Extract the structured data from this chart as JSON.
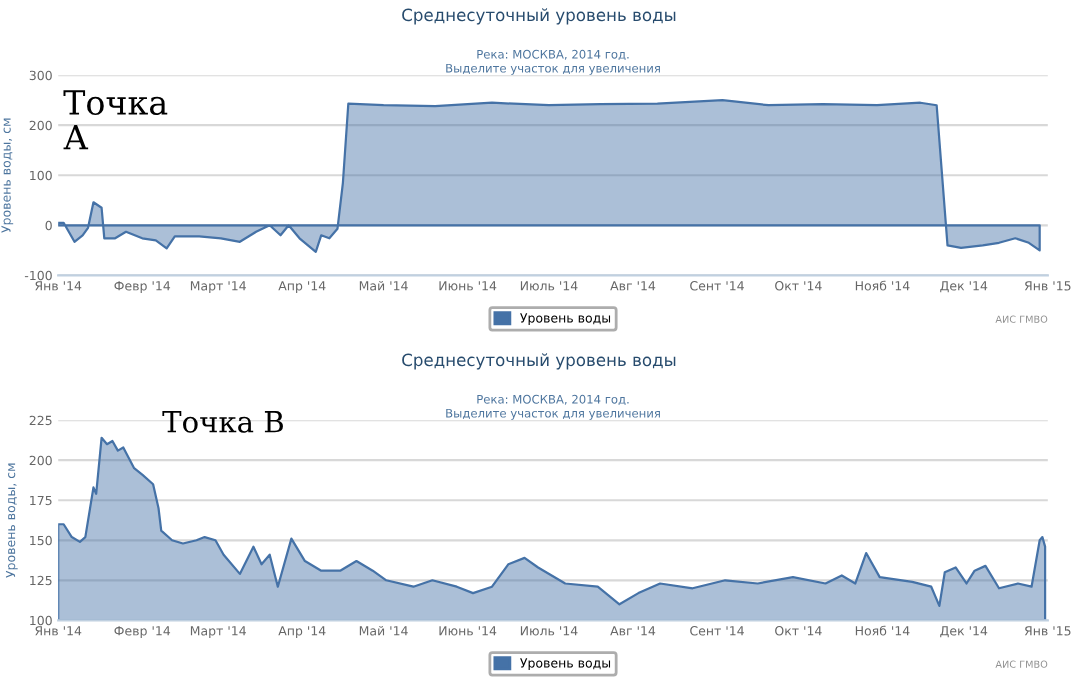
{
  "chart_data": [
    {
      "type": "area",
      "title": "Среднесуточный уровень воды",
      "subtitle": "Река: МОСКВА, 2014 год.\nВыделите участок для увеличения",
      "ylabel": "Уровень воды, см",
      "annotations": [
        "Точка\nА",
        "АИС ГМВО"
      ],
      "x": [
        "2014-01-01",
        "2014-01-03",
        "2014-01-07",
        "2014-01-10",
        "2014-01-12",
        "2014-01-14",
        "2014-01-17",
        "2014-01-18",
        "2014-01-22",
        "2014-01-26",
        "2014-02-01",
        "2014-02-06",
        "2014-02-10",
        "2014-02-13",
        "2014-02-22",
        "2014-03-02",
        "2014-03-09",
        "2014-03-15",
        "2014-03-20",
        "2014-03-24",
        "2014-03-27",
        "2014-03-31",
        "2014-04-06",
        "2014-04-08",
        "2014-04-11",
        "2014-04-14",
        "2014-04-16",
        "2014-04-18",
        "2014-05-01",
        "2014-05-20",
        "2014-06-10",
        "2014-07-01",
        "2014-07-20",
        "2014-08-10",
        "2014-09-03",
        "2014-09-20",
        "2014-10-10",
        "2014-10-30",
        "2014-11-15",
        "2014-11-21",
        "2014-11-25",
        "2014-11-30",
        "2014-12-08",
        "2014-12-14",
        "2014-12-20",
        "2014-12-25",
        "2014-12-29"
      ],
      "series": [
        {
          "name": "Уровень воды",
          "color": "#4572a7",
          "values": [
            5,
            5,
            -33,
            -20,
            -5,
            46,
            35,
            -26,
            -26,
            -13,
            -26,
            -30,
            -46,
            -22,
            -22,
            -26,
            -33,
            -13,
            0,
            -20,
            0,
            -26,
            -53,
            -20,
            -26,
            -7,
            85,
            243,
            240,
            238,
            245,
            240,
            242,
            243,
            250,
            240,
            242,
            240,
            245,
            240,
            -40,
            -45,
            -40,
            -35,
            -26,
            -35,
            -50
          ]
        }
      ],
      "xlim": [
        "2014-01-01",
        "2015-01-01"
      ],
      "xticks": [
        {
          "value": "2014-01-01",
          "label": "Янв '14"
        },
        {
          "value": "2014-02-01",
          "label": "Февр '14"
        },
        {
          "value": "2014-03-01",
          "label": "Март '14"
        },
        {
          "value": "2014-04-01",
          "label": "Апр '14"
        },
        {
          "value": "2014-05-01",
          "label": "Май '14"
        },
        {
          "value": "2014-06-01",
          "label": "Июнь '14"
        },
        {
          "value": "2014-07-01",
          "label": "Июль '14"
        },
        {
          "value": "2014-08-01",
          "label": "Авг '14"
        },
        {
          "value": "2014-09-01",
          "label": "Сент '14"
        },
        {
          "value": "2014-10-01",
          "label": "Окт '14"
        },
        {
          "value": "2014-11-01",
          "label": "Нояб '14"
        },
        {
          "value": "2014-12-01",
          "label": "Дек '14"
        },
        {
          "value": "2015-01-01",
          "label": "Янв '15"
        }
      ],
      "ylim": [
        -100,
        300
      ],
      "yticks": [
        -100,
        0,
        100,
        200,
        300
      ],
      "grid": "y",
      "legend": "bottom"
    },
    {
      "type": "area",
      "title": "Среднесуточный уровень воды",
      "subtitle": "Река: МОСКВА, 2014 год.\nВыделите участок для увеличения",
      "ylabel": "Уровень воды, см",
      "annotations": [
        "Точка В",
        "АИС ГМВО"
      ],
      "x": [
        "2014-01-01",
        "2014-01-03",
        "2014-01-06",
        "2014-01-09",
        "2014-01-11",
        "2014-01-14",
        "2014-01-15",
        "2014-01-17",
        "2014-01-19",
        "2014-01-21",
        "2014-01-23",
        "2014-01-25",
        "2014-01-29",
        "2014-02-01",
        "2014-02-05",
        "2014-02-07",
        "2014-02-08",
        "2014-02-12",
        "2014-02-16",
        "2014-02-21",
        "2014-02-24",
        "2014-02-28",
        "2014-03-03",
        "2014-03-09",
        "2014-03-14",
        "2014-03-17",
        "2014-03-20",
        "2014-03-23",
        "2014-03-28",
        "2014-04-02",
        "2014-04-08",
        "2014-04-15",
        "2014-04-21",
        "2014-04-27",
        "2014-05-02",
        "2014-05-12",
        "2014-05-19",
        "2014-05-28",
        "2014-06-03",
        "2014-06-10",
        "2014-06-16",
        "2014-06-22",
        "2014-06-27",
        "2014-07-07",
        "2014-07-19",
        "2014-07-27",
        "2014-08-03",
        "2014-08-11",
        "2014-08-23",
        "2014-09-04",
        "2014-09-16",
        "2014-09-29",
        "2014-10-11",
        "2014-10-17",
        "2014-10-22",
        "2014-10-26",
        "2014-10-31",
        "2014-11-12",
        "2014-11-19",
        "2014-11-22",
        "2014-11-24",
        "2014-11-28",
        "2014-12-02",
        "2014-12-05",
        "2014-12-09",
        "2014-12-14",
        "2014-12-21",
        "2014-12-26",
        "2014-12-29",
        "2014-12-30",
        "2014-12-31"
      ],
      "series": [
        {
          "name": "Уровень воды",
          "color": "#4572a7",
          "values": [
            160,
            160,
            152,
            149,
            152,
            183,
            179,
            214,
            210,
            212,
            206,
            208,
            195,
            191,
            185,
            170,
            156,
            150,
            148,
            150,
            152,
            150,
            141,
            129,
            146,
            135,
            141,
            121,
            151,
            137,
            131,
            131,
            137,
            131,
            125,
            121,
            125,
            121,
            117,
            121,
            135,
            139,
            133,
            123,
            121,
            110,
            117,
            123,
            120,
            125,
            123,
            127,
            123,
            128,
            123,
            142,
            127,
            124,
            121,
            109,
            130,
            133,
            123,
            131,
            134,
            120,
            123,
            121,
            150,
            152,
            146
          ]
        }
      ],
      "xlim": [
        "2014-01-01",
        "2015-01-01"
      ],
      "xticks": [
        {
          "value": "2014-01-01",
          "label": "Янв '14"
        },
        {
          "value": "2014-02-01",
          "label": "Февр '14"
        },
        {
          "value": "2014-03-01",
          "label": "Март '14"
        },
        {
          "value": "2014-04-01",
          "label": "Апр '14"
        },
        {
          "value": "2014-05-01",
          "label": "Май '14"
        },
        {
          "value": "2014-06-01",
          "label": "Июнь '14"
        },
        {
          "value": "2014-07-01",
          "label": "Июль '14"
        },
        {
          "value": "2014-08-01",
          "label": "Авг '14"
        },
        {
          "value": "2014-09-01",
          "label": "Сент '14"
        },
        {
          "value": "2014-10-01",
          "label": "Окт '14"
        },
        {
          "value": "2014-11-01",
          "label": "Нояб '14"
        },
        {
          "value": "2014-12-01",
          "label": "Дек '14"
        },
        {
          "value": "2015-01-01",
          "label": "Янв '15"
        }
      ],
      "ylim": [
        100,
        225
      ],
      "yticks": [
        100,
        125,
        150,
        175,
        200,
        225
      ],
      "grid": "y",
      "legend": "bottom"
    }
  ]
}
